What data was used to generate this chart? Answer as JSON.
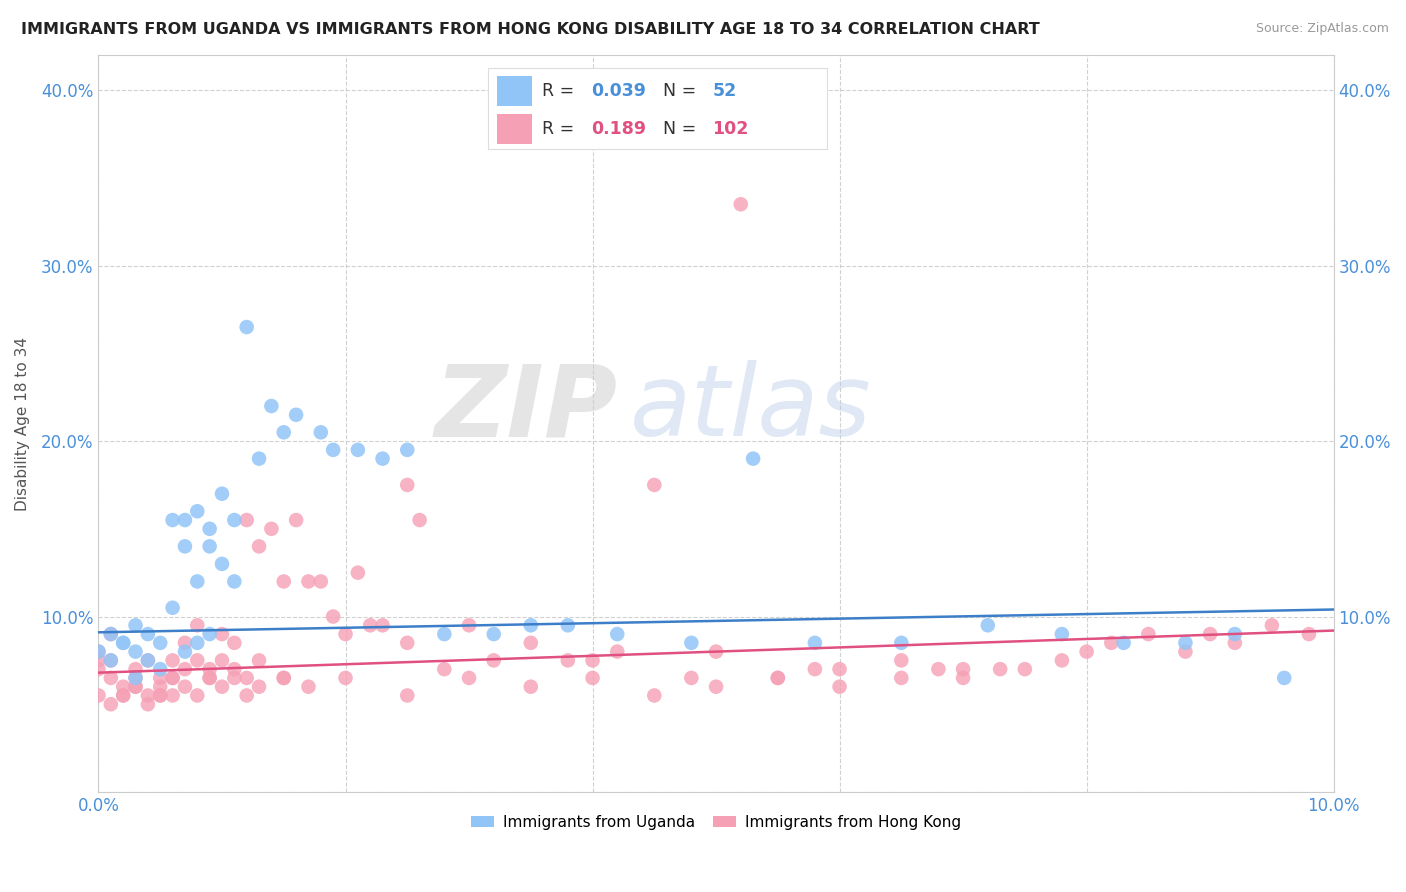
{
  "title": "IMMIGRANTS FROM UGANDA VS IMMIGRANTS FROM HONG KONG DISABILITY AGE 18 TO 34 CORRELATION CHART",
  "source": "Source: ZipAtlas.com",
  "ylabel": "Disability Age 18 to 34",
  "xlim": [
    0.0,
    0.1
  ],
  "ylim": [
    0.0,
    0.42
  ],
  "x_ticks": [
    0.0,
    0.02,
    0.04,
    0.06,
    0.08,
    0.1
  ],
  "y_ticks": [
    0.0,
    0.1,
    0.2,
    0.3,
    0.4
  ],
  "x_tick_labels": [
    "0.0%",
    "",
    "",
    "",
    "",
    "10.0%"
  ],
  "y_tick_labels_left": [
    "",
    "10.0%",
    "20.0%",
    "30.0%",
    "40.0%"
  ],
  "y_tick_labels_right": [
    "",
    "10.0%",
    "20.0%",
    "30.0%",
    "40.0%"
  ],
  "legend_blue_R": "0.039",
  "legend_blue_N": "52",
  "legend_pink_R": "0.189",
  "legend_pink_N": "102",
  "blue_color": "#92C5F7",
  "pink_color": "#F5A0B5",
  "blue_line_color": "#3D7EC8",
  "pink_line_color": "#E05080",
  "watermark_zip": "ZIP",
  "watermark_atlas": "atlas",
  "blue_scatter_x": [
    0.001,
    0.002,
    0.003,
    0.003,
    0.004,
    0.004,
    0.005,
    0.005,
    0.006,
    0.007,
    0.007,
    0.008,
    0.008,
    0.009,
    0.009,
    0.01,
    0.01,
    0.011,
    0.011,
    0.012,
    0.013,
    0.014,
    0.015,
    0.016,
    0.018,
    0.019,
    0.021,
    0.023,
    0.025,
    0.028,
    0.032,
    0.038,
    0.042,
    0.048,
    0.053,
    0.058,
    0.065,
    0.072,
    0.078,
    0.083,
    0.088,
    0.092,
    0.096,
    0.0,
    0.001,
    0.002,
    0.003,
    0.006,
    0.007,
    0.008,
    0.009,
    0.035
  ],
  "blue_scatter_y": [
    0.09,
    0.085,
    0.095,
    0.08,
    0.09,
    0.075,
    0.085,
    0.07,
    0.155,
    0.14,
    0.155,
    0.16,
    0.12,
    0.15,
    0.14,
    0.17,
    0.13,
    0.12,
    0.155,
    0.265,
    0.19,
    0.22,
    0.205,
    0.215,
    0.205,
    0.195,
    0.195,
    0.19,
    0.195,
    0.09,
    0.09,
    0.095,
    0.09,
    0.085,
    0.19,
    0.085,
    0.085,
    0.095,
    0.09,
    0.085,
    0.085,
    0.09,
    0.065,
    0.08,
    0.075,
    0.085,
    0.065,
    0.105,
    0.08,
    0.085,
    0.09,
    0.095
  ],
  "pink_scatter_x": [
    0.0,
    0.0,
    0.0,
    0.001,
    0.001,
    0.001,
    0.002,
    0.002,
    0.003,
    0.003,
    0.003,
    0.004,
    0.004,
    0.005,
    0.005,
    0.005,
    0.006,
    0.006,
    0.006,
    0.007,
    0.007,
    0.008,
    0.008,
    0.009,
    0.009,
    0.01,
    0.01,
    0.011,
    0.011,
    0.012,
    0.012,
    0.013,
    0.013,
    0.014,
    0.015,
    0.015,
    0.016,
    0.017,
    0.018,
    0.019,
    0.02,
    0.021,
    0.022,
    0.023,
    0.025,
    0.026,
    0.028,
    0.03,
    0.032,
    0.035,
    0.038,
    0.04,
    0.042,
    0.045,
    0.048,
    0.05,
    0.052,
    0.055,
    0.058,
    0.06,
    0.065,
    0.068,
    0.07,
    0.073,
    0.075,
    0.078,
    0.08,
    0.082,
    0.085,
    0.088,
    0.09,
    0.092,
    0.095,
    0.098,
    0.0,
    0.001,
    0.002,
    0.003,
    0.004,
    0.005,
    0.006,
    0.007,
    0.008,
    0.009,
    0.01,
    0.011,
    0.012,
    0.013,
    0.015,
    0.017,
    0.02,
    0.025,
    0.03,
    0.035,
    0.04,
    0.045,
    0.05,
    0.055,
    0.025,
    0.06,
    0.065,
    0.07
  ],
  "pink_scatter_y": [
    0.08,
    0.075,
    0.07,
    0.09,
    0.075,
    0.065,
    0.06,
    0.055,
    0.07,
    0.065,
    0.06,
    0.075,
    0.055,
    0.065,
    0.06,
    0.055,
    0.075,
    0.065,
    0.055,
    0.085,
    0.07,
    0.095,
    0.075,
    0.065,
    0.07,
    0.09,
    0.075,
    0.085,
    0.07,
    0.155,
    0.065,
    0.14,
    0.075,
    0.15,
    0.12,
    0.065,
    0.155,
    0.12,
    0.12,
    0.1,
    0.09,
    0.125,
    0.095,
    0.095,
    0.085,
    0.155,
    0.07,
    0.095,
    0.075,
    0.085,
    0.075,
    0.075,
    0.08,
    0.175,
    0.065,
    0.08,
    0.335,
    0.065,
    0.07,
    0.07,
    0.075,
    0.07,
    0.065,
    0.07,
    0.07,
    0.075,
    0.08,
    0.085,
    0.09,
    0.08,
    0.09,
    0.085,
    0.095,
    0.09,
    0.055,
    0.05,
    0.055,
    0.06,
    0.05,
    0.055,
    0.065,
    0.06,
    0.055,
    0.065,
    0.06,
    0.065,
    0.055,
    0.06,
    0.065,
    0.06,
    0.065,
    0.055,
    0.065,
    0.06,
    0.065,
    0.055,
    0.06,
    0.065,
    0.175,
    0.06,
    0.065,
    0.07
  ],
  "blue_line_x": [
    0.0,
    0.1
  ],
  "blue_line_y": [
    0.091,
    0.104
  ],
  "pink_line_x": [
    0.0,
    0.1
  ],
  "pink_line_y": [
    0.068,
    0.092
  ]
}
